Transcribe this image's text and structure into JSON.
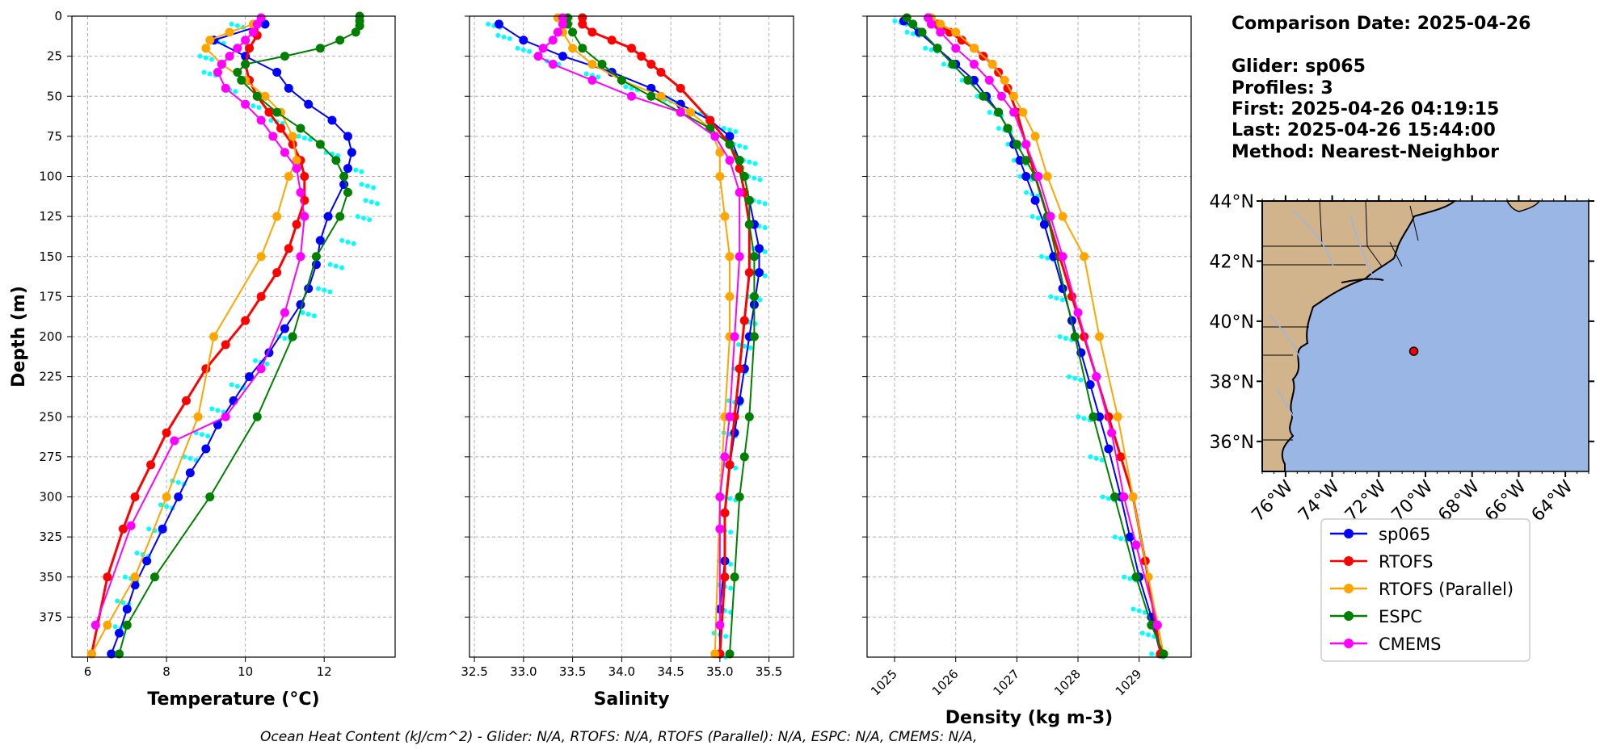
{
  "info": {
    "comparison_date": "Comparison Date: 2025-04-26",
    "glider": "Glider: sp065",
    "profiles": "Profiles: 3",
    "first": "First: 2025-04-26 04:19:15",
    "last": "Last: 2025-04-26 15:44:00",
    "method": "Method: Nearest-Neighbor"
  },
  "footer": "Ocean Heat Content (kJ/cm^2) - Glider: N/A,  RTOFS: N/A,  RTOFS (Parallel): N/A,  ESPC: N/A,  CMEMS: N/A,",
  "legend": [
    {
      "label": "sp065",
      "color": "#0000ff"
    },
    {
      "label": "RTOFS",
      "color": "#ff0000"
    },
    {
      "label": "RTOFS (Parallel)",
      "color": "#ffa500"
    },
    {
      "label": "ESPC",
      "color": "#008000"
    },
    {
      "label": "CMEMS",
      "color": "#ff00ff"
    }
  ],
  "map": {
    "lat_ticks": [
      "44°N",
      "42°N",
      "40°N",
      "38°N",
      "36°N"
    ],
    "lon_ticks": [
      "76°W",
      "74°W",
      "72°W",
      "70°W",
      "68°W",
      "66°W",
      "64°W"
    ],
    "lon_range": [
      -77.0,
      -63.0
    ],
    "lat_range": [
      35.0,
      44.0
    ],
    "glider_location": {
      "lon": -70.5,
      "lat": 39.0
    },
    "land_color": "#d2b48c",
    "ocean_color": "#9ab6e4"
  },
  "chart_data": [
    {
      "type": "line",
      "xlabel": "Temperature (°C)",
      "ylabel": "Depth (m)",
      "xlim": [
        5.6,
        13.8
      ],
      "ylim": [
        400,
        0
      ],
      "xticks": [
        6,
        8,
        10,
        12
      ],
      "yticks": [
        0,
        25,
        50,
        75,
        100,
        125,
        150,
        175,
        200,
        225,
        250,
        275,
        300,
        325,
        350,
        375
      ],
      "grid": true,
      "glider_raw": {
        "color": "#00ffff",
        "x": [
          9.8,
          9.3,
          9.0,
          9.1,
          9.6,
          10.2,
          10.8,
          11.5,
          12.2,
          12.8,
          13.1,
          13.2,
          13.0,
          12.6,
          12.3,
          12.0,
          11.6,
          11.0,
          10.4,
          9.8,
          9.3,
          8.9,
          8.6,
          8.3,
          8.0,
          7.7,
          7.4,
          7.1,
          6.9,
          6.7
        ],
        "y": [
          5,
          15,
          25,
          35,
          45,
          55,
          65,
          75,
          85,
          95,
          105,
          115,
          125,
          140,
          155,
          170,
          185,
          200,
          215,
          230,
          245,
          260,
          275,
          290,
          305,
          320,
          335,
          350,
          365,
          380
        ]
      },
      "series": [
        {
          "name": "sp065",
          "color": "#0000ff",
          "x": [
            10.5,
            9.2,
            10.0,
            10.8,
            11.1,
            11.6,
            12.2,
            12.6,
            12.7,
            12.6,
            12.5,
            12.1,
            11.9,
            11.8,
            11.6,
            11.4,
            11.0,
            10.6,
            10.1,
            9.7,
            9.3,
            9.0,
            8.6,
            8.3,
            7.9,
            7.5,
            7.2,
            7.0,
            6.8,
            6.6
          ],
          "y": [
            5,
            15,
            25,
            35,
            45,
            55,
            65,
            75,
            85,
            95,
            105,
            125,
            140,
            155,
            170,
            180,
            195,
            210,
            225,
            240,
            255,
            270,
            285,
            300,
            320,
            340,
            355,
            370,
            385,
            398
          ]
        },
        {
          "name": "RTOFS",
          "color": "#ff0000",
          "x": [
            10.3,
            10.3,
            10.1,
            10.0,
            10.1,
            10.3,
            10.6,
            10.9,
            11.2,
            11.4,
            11.5,
            11.5,
            11.3,
            11.1,
            10.8,
            10.4,
            10.0,
            9.5,
            9.0,
            8.5,
            8.0,
            7.6,
            7.2,
            6.9,
            6.5,
            6.1
          ],
          "y": [
            5,
            12,
            20,
            30,
            40,
            50,
            60,
            70,
            80,
            90,
            100,
            115,
            130,
            145,
            160,
            175,
            190,
            205,
            220,
            240,
            260,
            280,
            300,
            320,
            350,
            398
          ]
        },
        {
          "name": "RTOFS (Parallel)",
          "color": "#ffa500",
          "x": [
            10.2,
            9.6,
            9.1,
            9.0,
            9.4,
            10.0,
            10.5,
            10.9,
            11.2,
            11.3,
            11.1,
            10.8,
            10.4,
            9.2,
            8.8,
            8.0,
            7.2,
            6.5,
            6.1
          ],
          "y": [
            5,
            10,
            15,
            20,
            30,
            40,
            50,
            60,
            75,
            90,
            100,
            125,
            150,
            200,
            250,
            300,
            350,
            380,
            398
          ]
        },
        {
          "name": "ESPC",
          "color": "#008000",
          "x": [
            12.9,
            12.9,
            12.9,
            12.8,
            12.4,
            11.9,
            11.0,
            10.0,
            9.8,
            9.9,
            10.3,
            10.8,
            11.4,
            11.9,
            12.3,
            12.5,
            12.6,
            12.4,
            11.8,
            11.2,
            10.3,
            9.1,
            7.7,
            7.0,
            6.8
          ],
          "y": [
            0,
            3,
            6,
            10,
            15,
            20,
            25,
            30,
            35,
            40,
            50,
            60,
            70,
            80,
            90,
            100,
            110,
            125,
            150,
            200,
            250,
            300,
            350,
            380,
            398
          ]
        },
        {
          "name": "CMEMS",
          "color": "#ff00ff",
          "x": [
            10.4,
            10.3,
            10.2,
            10.0,
            9.8,
            9.6,
            9.4,
            9.3,
            9.5,
            10.0,
            10.4,
            10.7,
            11.0,
            11.3,
            11.4,
            11.5,
            11.4,
            11.0,
            10.4,
            9.5,
            8.2,
            7.1,
            6.2
          ],
          "y": [
            1,
            5,
            10,
            15,
            20,
            25,
            30,
            35,
            45,
            55,
            65,
            75,
            85,
            95,
            110,
            125,
            150,
            185,
            220,
            250,
            265,
            318,
            380
          ]
        }
      ]
    },
    {
      "type": "line",
      "xlabel": "Salinity",
      "ylim": [
        400,
        0
      ],
      "xlim": [
        32.45,
        35.75
      ],
      "xticks": [
        32.5,
        33.0,
        33.5,
        34.0,
        34.5,
        35.0,
        35.5
      ],
      "grid": true,
      "glider_raw": {
        "color": "#00ffff",
        "x": [
          32.7,
          32.8,
          33.0,
          33.3,
          33.7,
          34.1,
          34.5,
          34.8,
          35.1,
          35.2,
          35.3,
          35.35,
          35.4,
          35.4,
          35.4,
          35.4,
          35.35,
          35.3,
          35.25,
          35.2,
          35.15,
          35.1,
          35.1,
          35.1,
          35.05,
          35.05,
          35.05,
          35.05,
          35.0,
          35.0
        ],
        "y": [
          5,
          12,
          20,
          28,
          36,
          44,
          52,
          60,
          70,
          80,
          90,
          100,
          115,
          130,
          145,
          160,
          175,
          190,
          205,
          220,
          240,
          260,
          280,
          300,
          320,
          340,
          355,
          370,
          385,
          398
        ]
      },
      "series": [
        {
          "name": "sp065",
          "color": "#0000ff",
          "x": [
            32.75,
            33.0,
            33.4,
            33.9,
            34.3,
            34.6,
            34.9,
            35.1,
            35.2,
            35.25,
            35.3,
            35.35,
            35.4,
            35.4,
            35.35,
            35.3,
            35.25,
            35.2,
            35.15,
            35.1,
            35.05,
            35.05,
            35.0,
            35.0
          ],
          "y": [
            5,
            15,
            25,
            35,
            45,
            55,
            65,
            75,
            90,
            100,
            115,
            130,
            145,
            160,
            180,
            200,
            220,
            240,
            260,
            280,
            310,
            340,
            370,
            398
          ]
        },
        {
          "name": "RTOFS",
          "color": "#ff0000",
          "x": [
            33.6,
            33.6,
            33.7,
            33.9,
            34.1,
            34.2,
            34.3,
            34.4,
            34.6,
            34.9,
            35.1,
            35.2,
            35.25,
            35.3,
            35.3,
            35.25,
            35.2,
            35.15,
            35.1,
            35.05,
            35.05,
            35.0
          ],
          "y": [
            1,
            5,
            10,
            15,
            20,
            25,
            30,
            35,
            45,
            65,
            80,
            95,
            110,
            130,
            160,
            190,
            220,
            250,
            280,
            310,
            350,
            398
          ]
        },
        {
          "name": "RTOFS (Parallel)",
          "color": "#ffa500",
          "x": [
            33.35,
            33.4,
            33.5,
            33.7,
            34.0,
            34.4,
            34.7,
            34.9,
            35.0,
            35.0,
            35.05,
            35.1,
            35.1,
            35.1,
            35.05,
            35.0,
            34.95
          ],
          "y": [
            1,
            10,
            20,
            30,
            40,
            50,
            60,
            70,
            85,
            100,
            125,
            150,
            175,
            200,
            250,
            300,
            398
          ]
        },
        {
          "name": "ESPC",
          "color": "#008000",
          "x": [
            33.45,
            33.45,
            33.5,
            33.6,
            33.8,
            34.0,
            34.3,
            34.6,
            34.9,
            35.1,
            35.2,
            35.25,
            35.3,
            35.3,
            35.35,
            35.35,
            35.35,
            35.3,
            35.25,
            35.2,
            35.15,
            35.1
          ],
          "y": [
            1,
            5,
            10,
            20,
            30,
            40,
            50,
            60,
            70,
            80,
            90,
            100,
            115,
            130,
            150,
            175,
            200,
            250,
            275,
            300,
            350,
            398
          ]
        },
        {
          "name": "CMEMS",
          "color": "#ff00ff",
          "x": [
            33.4,
            33.4,
            33.35,
            33.3,
            33.2,
            33.15,
            33.3,
            33.7,
            34.1,
            34.6,
            34.95,
            35.1,
            35.2,
            35.2,
            35.15,
            35.1,
            35.05,
            35.0,
            35.0,
            35.0
          ],
          "y": [
            1,
            5,
            10,
            15,
            20,
            25,
            30,
            40,
            50,
            60,
            75,
            90,
            110,
            150,
            200,
            250,
            275,
            300,
            320,
            380
          ]
        }
      ]
    },
    {
      "type": "line",
      "xlabel": "Density (kg m-3)",
      "ylim": [
        400,
        0
      ],
      "xlim": [
        1024.55,
        1029.85
      ],
      "xticks": [
        1025,
        1026,
        1027,
        1028,
        1029
      ],
      "grid": true,
      "glider_raw": {
        "color": "#00ffff",
        "x": [
          1025.1,
          1025.3,
          1025.6,
          1025.9,
          1026.2,
          1026.45,
          1026.65,
          1026.8,
          1026.95,
          1027.05,
          1027.15,
          1027.25,
          1027.35,
          1027.5,
          1027.65,
          1027.8,
          1027.95,
          1028.1,
          1028.3,
          1028.5,
          1028.7,
          1028.85,
          1029.0,
          1029.15,
          1029.3
        ],
        "y": [
          3,
          10,
          20,
          30,
          40,
          50,
          60,
          70,
          80,
          90,
          100,
          110,
          125,
          150,
          175,
          200,
          225,
          250,
          275,
          300,
          325,
          350,
          370,
          385,
          398
        ]
      },
      "series": [
        {
          "name": "sp065",
          "color": "#0000ff",
          "x": [
            1025.15,
            1025.4,
            1025.7,
            1026.0,
            1026.3,
            1026.5,
            1026.7,
            1026.85,
            1026.95,
            1027.05,
            1027.15,
            1027.3,
            1027.45,
            1027.6,
            1027.75,
            1027.9,
            1028.05,
            1028.2,
            1028.35,
            1028.5,
            1028.7,
            1028.85,
            1029.0,
            1029.2,
            1029.35
          ],
          "y": [
            3,
            10,
            20,
            30,
            40,
            50,
            60,
            70,
            80,
            90,
            100,
            115,
            130,
            150,
            170,
            190,
            210,
            230,
            250,
            270,
            300,
            325,
            350,
            375,
            398
          ]
        },
        {
          "name": "RTOFS",
          "color": "#ff0000",
          "x": [
            1025.55,
            1025.7,
            1025.9,
            1026.1,
            1026.3,
            1026.45,
            1026.6,
            1026.7,
            1026.85,
            1027.0,
            1027.15,
            1027.3,
            1027.5,
            1027.7,
            1027.9,
            1028.1,
            1028.3,
            1028.5,
            1028.7,
            1028.9,
            1029.1,
            1029.35
          ],
          "y": [
            1,
            5,
            10,
            15,
            20,
            25,
            30,
            35,
            45,
            60,
            80,
            100,
            125,
            150,
            175,
            200,
            225,
            250,
            275,
            300,
            340,
            398
          ]
        },
        {
          "name": "RTOFS (Parallel)",
          "color": "#ffa500",
          "x": [
            1025.6,
            1025.75,
            1026.0,
            1026.3,
            1026.6,
            1026.8,
            1026.95,
            1027.1,
            1027.3,
            1027.5,
            1027.75,
            1028.1,
            1028.35,
            1028.65,
            1028.9,
            1029.15,
            1029.4
          ],
          "y": [
            1,
            5,
            10,
            20,
            30,
            40,
            50,
            60,
            75,
            100,
            125,
            150,
            200,
            250,
            300,
            350,
            398
          ]
        },
        {
          "name": "ESPC",
          "color": "#008000",
          "x": [
            1025.2,
            1025.3,
            1025.45,
            1025.7,
            1025.95,
            1026.2,
            1026.45,
            1026.7,
            1026.85,
            1027.0,
            1027.15,
            1027.3,
            1027.5,
            1027.95,
            1028.25,
            1028.6,
            1028.95,
            1029.2,
            1029.4
          ],
          "y": [
            1,
            5,
            10,
            20,
            30,
            40,
            50,
            60,
            70,
            80,
            90,
            100,
            125,
            200,
            250,
            300,
            350,
            380,
            398
          ]
        },
        {
          "name": "CMEMS",
          "color": "#ff00ff",
          "x": [
            1025.55,
            1025.6,
            1025.75,
            1026.0,
            1026.3,
            1026.55,
            1026.75,
            1026.95,
            1027.15,
            1027.35,
            1027.55,
            1027.75,
            1028.0,
            1028.3,
            1028.55,
            1028.75,
            1028.95,
            1029.3
          ],
          "y": [
            1,
            5,
            10,
            20,
            30,
            40,
            50,
            60,
            80,
            100,
            125,
            150,
            185,
            225,
            260,
            300,
            330,
            380
          ]
        }
      ]
    }
  ]
}
